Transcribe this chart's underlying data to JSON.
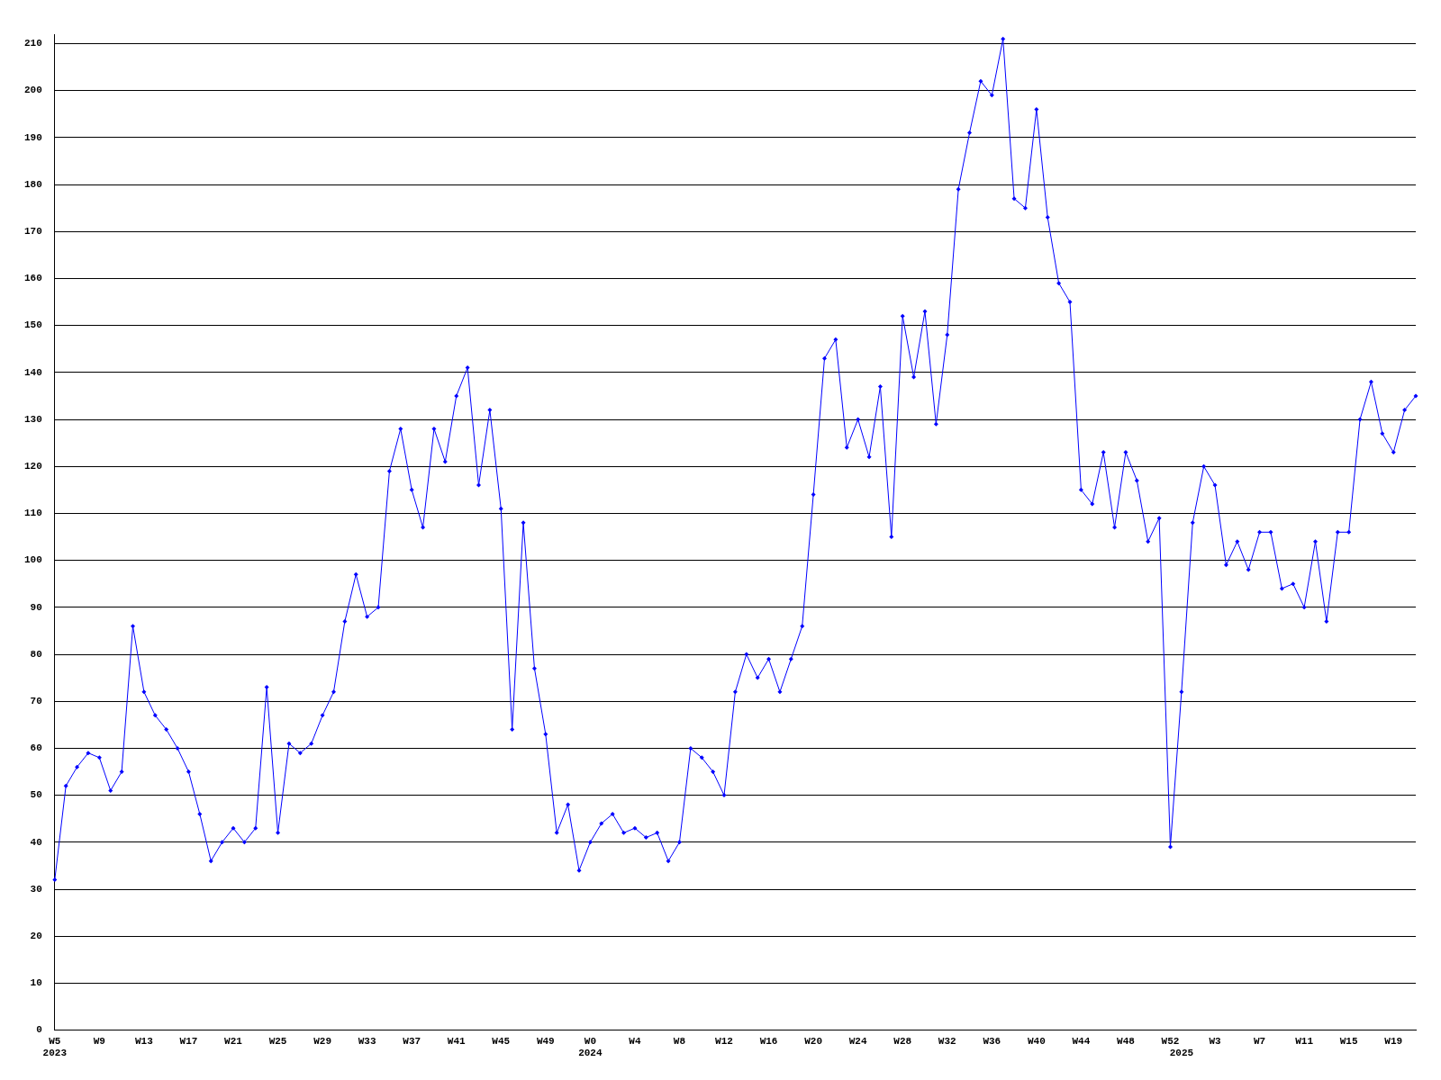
{
  "chart_data": {
    "type": "line",
    "categories": [
      "W5\n2023",
      null,
      null,
      null,
      "W9",
      null,
      null,
      null,
      "W13",
      null,
      null,
      null,
      "W17",
      null,
      null,
      null,
      "W21",
      null,
      null,
      null,
      "W25",
      null,
      null,
      null,
      "W29",
      null,
      null,
      null,
      "W33",
      null,
      null,
      null,
      "W37",
      null,
      null,
      null,
      "W41",
      null,
      null,
      null,
      "W45",
      null,
      null,
      null,
      "W49",
      null,
      null,
      null,
      "W0\n2024",
      null,
      null,
      null,
      "W4",
      null,
      null,
      null,
      "W8",
      null,
      null,
      null,
      "W12",
      null,
      null,
      null,
      "W16",
      null,
      null,
      null,
      "W20",
      null,
      null,
      null,
      "W24",
      null,
      null,
      null,
      "W28",
      null,
      null,
      null,
      "W32",
      null,
      null,
      null,
      "W36",
      null,
      null,
      null,
      "W40",
      null,
      null,
      null,
      "W44",
      null,
      null,
      null,
      "W48",
      null,
      null,
      null,
      "W52",
      "\n2025",
      null,
      null,
      "W3",
      null,
      null,
      null,
      "W7",
      null,
      null,
      null,
      "W11",
      null,
      null,
      null,
      "W15",
      null,
      null,
      null,
      "W19",
      null,
      null
    ],
    "series": [
      {
        "color": "#0000ff",
        "values": [
          32,
          52,
          56,
          59,
          58,
          51,
          55,
          86,
          72,
          67,
          64,
          60,
          55,
          46,
          36,
          40,
          43,
          40,
          43,
          73,
          42,
          61,
          59,
          61,
          67,
          72,
          87,
          97,
          88,
          90,
          119,
          128,
          115,
          107,
          128,
          121,
          135,
          141,
          116,
          132,
          111,
          64,
          108,
          77,
          63,
          42,
          48,
          34,
          40,
          44,
          46,
          42,
          43,
          41,
          42,
          36,
          40,
          60,
          58,
          55,
          50,
          72,
          80,
          75,
          79,
          72,
          79,
          86,
          114,
          143,
          147,
          124,
          130,
          122,
          137,
          105,
          152,
          139,
          153,
          129,
          148,
          179,
          191,
          202,
          199,
          211,
          177,
          175,
          196,
          173,
          159,
          155,
          115,
          112,
          123,
          107,
          123,
          117,
          104,
          109,
          39,
          72,
          108,
          120,
          116,
          99,
          104,
          98,
          106,
          106,
          94,
          95,
          90,
          104,
          87,
          106,
          106,
          130,
          138,
          127,
          123,
          132,
          135
        ]
      }
    ],
    "ylim": [
      0,
      212
    ],
    "yticks": [
      0,
      10,
      20,
      30,
      40,
      50,
      60,
      70,
      80,
      90,
      100,
      110,
      120,
      130,
      140,
      150,
      160,
      170,
      180,
      190,
      200,
      210
    ],
    "grid": "y",
    "legend": false,
    "marker": "diamond",
    "line_style": "solid"
  }
}
